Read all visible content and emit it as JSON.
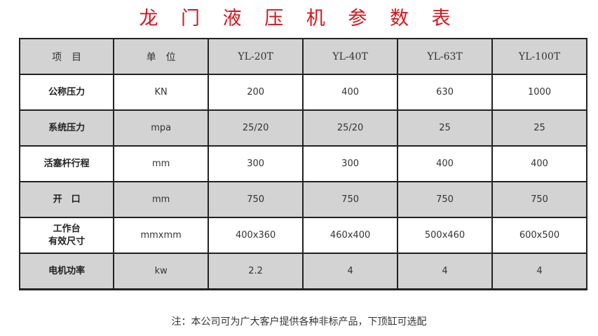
{
  "title": "龙 门 液 压 机 参 数 表",
  "headers": [
    "项　目",
    "单　位",
    "YL-20T",
    "YL-40T",
    "YL-63T",
    "YL-100T"
  ],
  "rows": [
    {
      "label": "公称压力",
      "label2": "",
      "unit": "KN",
      "values": [
        "200",
        "400",
        "630",
        "1000"
      ]
    },
    {
      "label": "系统压力",
      "label2": "",
      "unit": "mpa",
      "values": [
        "25/20",
        "25/20",
        "25",
        "25"
      ]
    },
    {
      "label": "活塞杆行程",
      "label2": "",
      "unit": "mm",
      "values": [
        "300",
        "300",
        "400",
        "400"
      ]
    },
    {
      "label": "开　口",
      "label2": "",
      "unit": "mm",
      "values": [
        "750",
        "750",
        "750",
        "750"
      ]
    },
    {
      "label": "工作台",
      "label2": "有效尺寸",
      "unit": "mmxmm",
      "values": [
        "400x360",
        "460x400",
        "500x460",
        "600x500"
      ]
    },
    {
      "label": "电机功率",
      "label2": "",
      "unit": "kw",
      "values": [
        "2.2",
        "4",
        "4",
        "4"
      ]
    }
  ],
  "note": "注：本公司可为广大客户提供各种非标产品，下顶缸可选配",
  "colors": {
    "title": "#d8141a",
    "shaded_row": "#d3d3d3"
  }
}
